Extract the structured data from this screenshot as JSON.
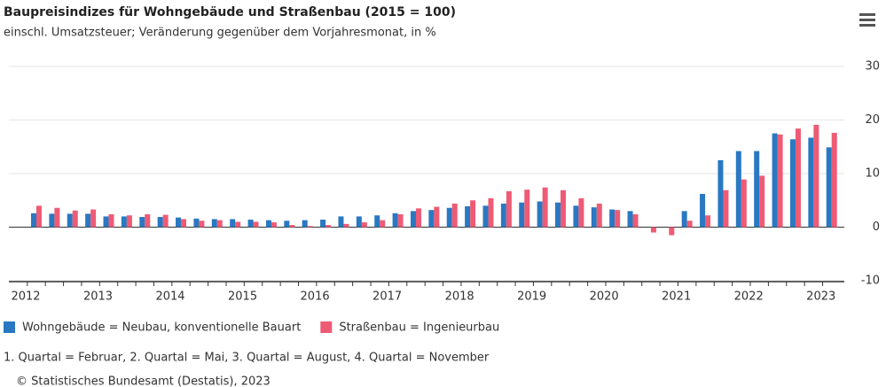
{
  "chart_data": {
    "type": "bar",
    "title": "Baupreisindizes für Wohngebäude und Straßenbau (2015 = 100)",
    "subtitle": "einschl. Umsatzsteuer; Veränderung gegenüber dem Vorjahresmonat, in %",
    "categories": [
      "2012",
      null,
      null,
      null,
      "2013",
      null,
      null,
      null,
      "2014",
      null,
      null,
      null,
      "2015",
      null,
      null,
      null,
      "2016",
      null,
      null,
      null,
      "2017",
      null,
      null,
      null,
      "2018",
      null,
      null,
      null,
      "2019",
      null,
      null,
      null,
      "2020",
      null,
      null,
      null,
      "2021",
      null,
      null,
      null,
      "2022",
      null,
      null,
      null,
      "2023"
    ],
    "series": [
      {
        "name": "Wohngebäude = Neubau, konventionelle Bauart",
        "color": "#2a78c2",
        "values": [
          2.6,
          2.5,
          2.5,
          2.5,
          2.0,
          2.0,
          1.9,
          1.9,
          1.8,
          1.6,
          1.5,
          1.5,
          1.4,
          1.3,
          1.2,
          1.3,
          1.4,
          2.0,
          2.0,
          2.2,
          2.6,
          3.0,
          3.2,
          3.6,
          3.9,
          4.0,
          4.4,
          4.6,
          4.8,
          4.6,
          4.0,
          3.7,
          3.3,
          3.0,
          0,
          0,
          3.0,
          6.2,
          12.5,
          14.2,
          14.2,
          17.5,
          16.4,
          16.7,
          14.9
        ]
      },
      {
        "name": "Straßenbau = Ingenieurbau",
        "color": "#ee5b75",
        "values": [
          4.0,
          3.6,
          3.1,
          3.3,
          2.4,
          2.2,
          2.4,
          2.3,
          1.5,
          1.2,
          1.3,
          1.0,
          1.0,
          0.9,
          0.4,
          0.2,
          0.4,
          0.6,
          0.9,
          1.3,
          2.4,
          3.5,
          3.8,
          4.4,
          5.0,
          5.4,
          6.7,
          7.0,
          7.4,
          6.9,
          5.4,
          4.4,
          3.2,
          2.4,
          -1.0,
          -1.5,
          1.2,
          2.2,
          6.9,
          8.9,
          9.6,
          17.3,
          18.4,
          19.1,
          17.6
        ]
      }
    ],
    "ylim": [
      -10,
      30
    ],
    "yticks": [
      -10,
      0,
      10,
      20,
      30
    ],
    "grid": true,
    "note": "1. Quartal = Februar, 2. Quartal = Mai, 3. Quartal = August, 4. Quartal = November",
    "source": "© Statistisches Bundesamt (Destatis), 2023"
  }
}
